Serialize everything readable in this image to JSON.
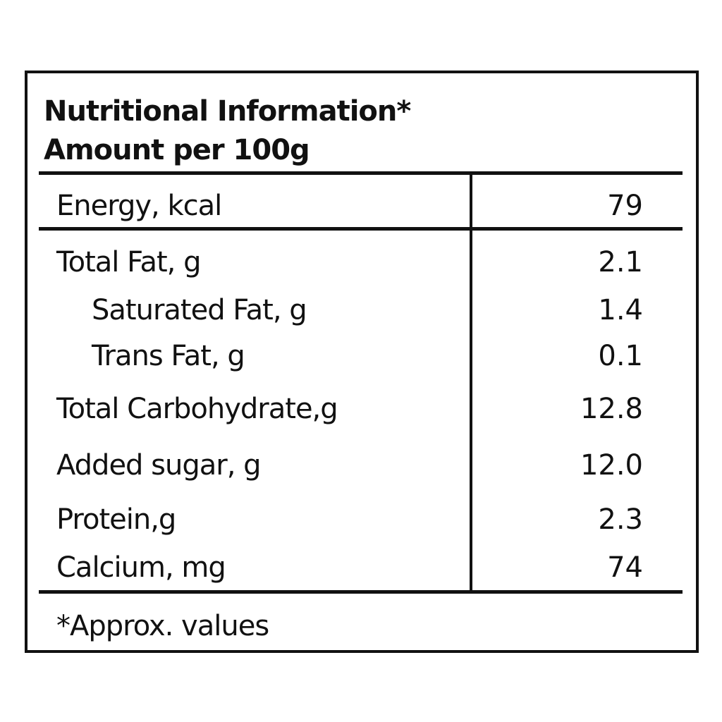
{
  "header": {
    "title": "Nutritional Information*",
    "subtitle": "Amount per 100g"
  },
  "table": {
    "rows": [
      [
        "Energy, kcal",
        79
      ],
      [
        "Total Fat, g",
        2.1
      ],
      [
        "Saturated Fat, g",
        1.4
      ],
      [
        "Trans Fat, g",
        0.1
      ],
      [
        "Total Carbohydrate,g",
        12.8
      ],
      [
        "Added sugar, g",
        "12.0"
      ],
      [
        "Protein,g",
        2.3
      ],
      [
        "Calcium, mg",
        74
      ]
    ]
  },
  "footer": {
    "note": "*Approx. values"
  }
}
